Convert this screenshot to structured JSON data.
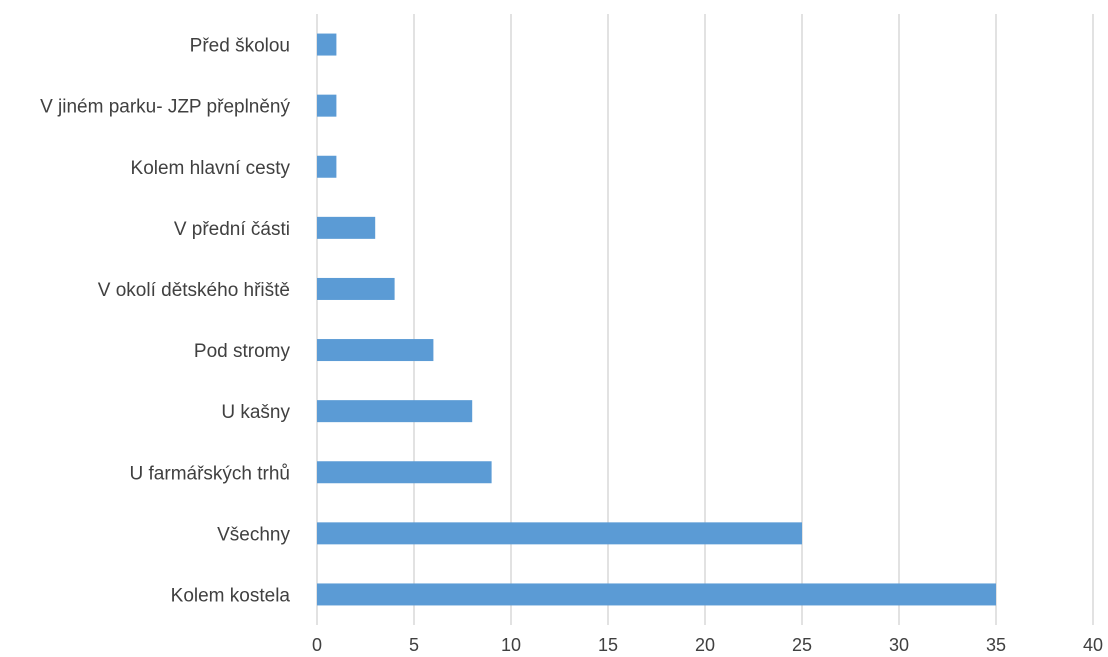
{
  "chart_data": {
    "type": "bar",
    "orientation": "horizontal",
    "categories": [
      "Kolem kostela",
      "Všechny",
      "U farmářských trhů",
      "U kašny",
      "Pod stromy",
      "V okolí dětského hřiště",
      "V přední části",
      "Kolem hlavní cesty",
      "V jiném parku- JZP přeplněný",
      "Před školou"
    ],
    "values": [
      35,
      25,
      9,
      8,
      6,
      4,
      3,
      1,
      1,
      1
    ],
    "xlim": [
      0,
      40
    ],
    "xticks": [
      "0",
      "5",
      "10",
      "15",
      "20",
      "25",
      "30",
      "35",
      "40"
    ],
    "grid": "vertical",
    "bar_color": "#5b9bd5",
    "grid_color": "#d9d9d9",
    "text_color": "#404040",
    "title": "",
    "xlabel": "",
    "ylabel": ""
  }
}
